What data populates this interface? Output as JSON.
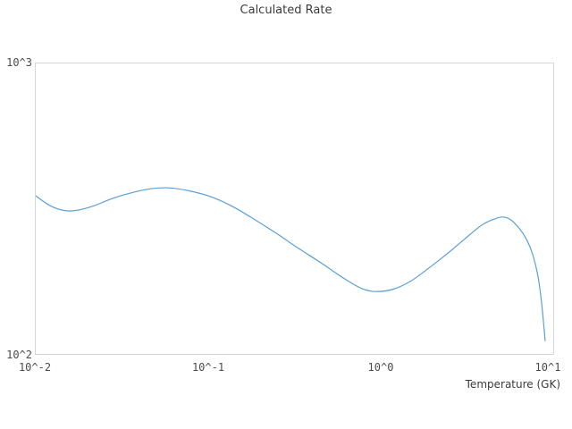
{
  "colors": {
    "line": "#5b9fd6",
    "border": "#d6d6d6",
    "titletext": "#3b3b3b",
    "ticktext": "#4a4a4a"
  },
  "chart_data": {
    "type": "line",
    "title": "Calculated Rate",
    "xlabel": "Temperature (GK)",
    "ylabel": "",
    "x_scale": "log",
    "y_scale": "log",
    "xlim": [
      0.01,
      10
    ],
    "ylim": [
      100,
      1000
    ],
    "x_ticks": [
      "10^-2",
      "10^-1",
      "10^0",
      "10^1"
    ],
    "y_ticks": [
      "10^2",
      "10^3"
    ],
    "grid": false,
    "legend": "none",
    "line_color": "#5b9fd6",
    "series": [
      {
        "name": "calculated-rate",
        "x": [
          0.01,
          0.0121,
          0.0145,
          0.0173,
          0.0219,
          0.0278,
          0.0374,
          0.0475,
          0.0588,
          0.0764,
          0.103,
          0.138,
          0.186,
          0.251,
          0.337,
          0.455,
          0.612,
          0.776,
          0.928,
          1.18,
          1.49,
          1.89,
          2.4,
          3.05,
          3.86,
          4.61,
          5.08,
          5.65,
          6.37,
          7.0,
          7.6,
          8.17,
          8.57,
          8.98
        ],
        "y": [
          350,
          324,
          312,
          312,
          324,
          343,
          361,
          371,
          373,
          365,
          348,
          322,
          290,
          259,
          230,
          205,
          182,
          168,
          164,
          167,
          178,
          197,
          220,
          248,
          278,
          292,
          296,
          290,
          270,
          248,
          220,
          184,
          149,
          111
        ]
      }
    ]
  }
}
